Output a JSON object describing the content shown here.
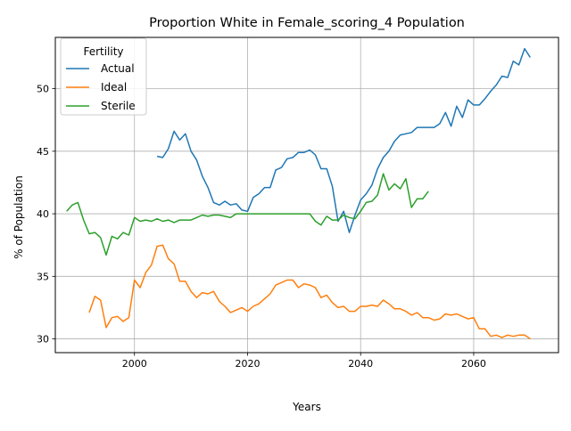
{
  "chart_data": {
    "type": "line",
    "title": "Proportion White in Female_scoring_4 Population",
    "xlabel": "Years",
    "ylabel": "% of Population",
    "xlim": [
      1986,
      2075
    ],
    "ylim": [
      28.9,
      54.1
    ],
    "xticks": [
      2000,
      2020,
      2040,
      2060
    ],
    "yticks": [
      30,
      35,
      40,
      45,
      50
    ],
    "grid": true,
    "legend": {
      "title": "Fertility",
      "position": "top-left",
      "entries": [
        "Actual",
        "Ideal",
        "Sterile"
      ]
    },
    "colors": {
      "Actual": "#1f77b4",
      "Ideal": "#ff7f0e",
      "Sterile": "#2ca02c"
    },
    "series": [
      {
        "name": "Actual",
        "x": [
          2004,
          2005,
          2006,
          2007,
          2008,
          2009,
          2010,
          2011,
          2012,
          2013,
          2014,
          2015,
          2016,
          2017,
          2018,
          2019,
          2020,
          2021,
          2022,
          2023,
          2024,
          2025,
          2026,
          2027,
          2028,
          2029,
          2030,
          2031,
          2032,
          2033,
          2034,
          2035,
          2036,
          2037,
          2038,
          2039,
          2040,
          2041,
          2042,
          2043,
          2044,
          2045,
          2046,
          2047,
          2048,
          2049,
          2050,
          2051,
          2052,
          2053,
          2054,
          2055,
          2056,
          2057,
          2058,
          2059,
          2060,
          2061,
          2062,
          2063,
          2064,
          2065,
          2066,
          2067,
          2068,
          2069,
          2070
        ],
        "values": [
          44.6,
          44.5,
          45.2,
          46.6,
          45.9,
          46.4,
          45.0,
          44.3,
          43.0,
          42.1,
          40.9,
          40.7,
          41.0,
          40.7,
          40.8,
          40.3,
          40.2,
          41.3,
          41.6,
          42.1,
          42.1,
          43.5,
          43.7,
          44.4,
          44.5,
          44.9,
          44.9,
          45.1,
          44.7,
          43.6,
          43.6,
          42.2,
          39.4,
          40.2,
          38.5,
          39.9,
          41.1,
          41.6,
          42.3,
          43.6,
          44.5,
          45.0,
          45.8,
          46.3,
          46.4,
          46.5,
          46.9,
          46.9,
          46.9,
          46.9,
          47.2,
          48.1,
          47.0,
          48.6,
          47.7,
          49.1,
          48.7,
          48.7,
          49.2,
          49.8,
          50.3,
          51.0,
          50.9,
          52.2,
          51.9,
          53.2,
          52.5
        ]
      },
      {
        "name": "Ideal",
        "x": [
          1992,
          1993,
          1994,
          1995,
          1996,
          1997,
          1998,
          1999,
          2000,
          2001,
          2002,
          2003,
          2004,
          2005,
          2006,
          2007,
          2008,
          2009,
          2010,
          2011,
          2012,
          2013,
          2014,
          2015,
          2016,
          2017,
          2018,
          2019,
          2020,
          2021,
          2022,
          2023,
          2024,
          2025,
          2026,
          2027,
          2028,
          2029,
          2030,
          2031,
          2032,
          2033,
          2034,
          2035,
          2036,
          2037,
          2038,
          2039,
          2040,
          2041,
          2042,
          2043,
          2044,
          2045,
          2046,
          2047,
          2048,
          2049,
          2050,
          2051,
          2052,
          2053,
          2054,
          2055,
          2056,
          2057,
          2058,
          2059,
          2060,
          2061,
          2062,
          2063,
          2064,
          2065,
          2066,
          2067,
          2068,
          2069,
          2070
        ],
        "values": [
          32.1,
          33.4,
          33.1,
          30.9,
          31.7,
          31.8,
          31.4,
          31.7,
          34.7,
          34.1,
          35.3,
          35.9,
          37.4,
          37.5,
          36.4,
          36.0,
          34.6,
          34.6,
          33.8,
          33.3,
          33.7,
          33.6,
          33.8,
          33.0,
          32.6,
          32.1,
          32.3,
          32.5,
          32.2,
          32.6,
          32.8,
          33.2,
          33.6,
          34.3,
          34.5,
          34.7,
          34.7,
          34.1,
          34.4,
          34.3,
          34.1,
          33.3,
          33.5,
          32.9,
          32.5,
          32.6,
          32.2,
          32.2,
          32.6,
          32.6,
          32.7,
          32.6,
          33.1,
          32.8,
          32.4,
          32.4,
          32.2,
          31.9,
          32.1,
          31.7,
          31.7,
          31.5,
          31.6,
          32.0,
          31.9,
          32.0,
          31.8,
          31.6,
          31.7,
          30.8,
          30.8,
          30.2,
          30.3,
          30.1,
          30.3,
          30.2,
          30.3,
          30.3,
          30.0
        ]
      },
      {
        "name": "Sterile",
        "x": [
          1988,
          1989,
          1990,
          1991,
          1992,
          1993,
          1994,
          1995,
          1996,
          1997,
          1998,
          1999,
          2000,
          2001,
          2002,
          2003,
          2004,
          2005,
          2006,
          2007,
          2008,
          2009,
          2010,
          2011,
          2012,
          2013,
          2014,
          2015,
          2016,
          2017,
          2018,
          2019,
          2020,
          2021,
          2022,
          2023,
          2024,
          2025,
          2026,
          2027,
          2028,
          2029,
          2030,
          2031,
          2032,
          2033,
          2034,
          2035,
          2036,
          2037,
          2038,
          2039,
          2040,
          2041,
          2042,
          2043,
          2044,
          2045,
          2046,
          2047,
          2048,
          2049,
          2050,
          2051,
          2052
        ],
        "values": [
          40.2,
          40.7,
          40.9,
          39.5,
          38.4,
          38.5,
          38.1,
          36.7,
          38.2,
          38.0,
          38.5,
          38.3,
          39.7,
          39.4,
          39.5,
          39.4,
          39.6,
          39.4,
          39.5,
          39.3,
          39.5,
          39.5,
          39.5,
          39.7,
          39.9,
          39.8,
          39.9,
          39.9,
          39.8,
          39.7,
          40.0,
          40.0,
          40.0,
          40.0,
          40.0,
          40.0,
          40.0,
          40.0,
          40.0,
          40.0,
          40.0,
          40.0,
          40.0,
          40.0,
          39.4,
          39.1,
          39.8,
          39.5,
          39.5,
          39.9,
          39.7,
          39.6,
          40.2,
          40.9,
          41.0,
          41.5,
          43.2,
          41.9,
          42.4,
          42.0,
          42.8,
          40.5,
          41.2,
          41.2,
          41.8
        ]
      }
    ]
  }
}
